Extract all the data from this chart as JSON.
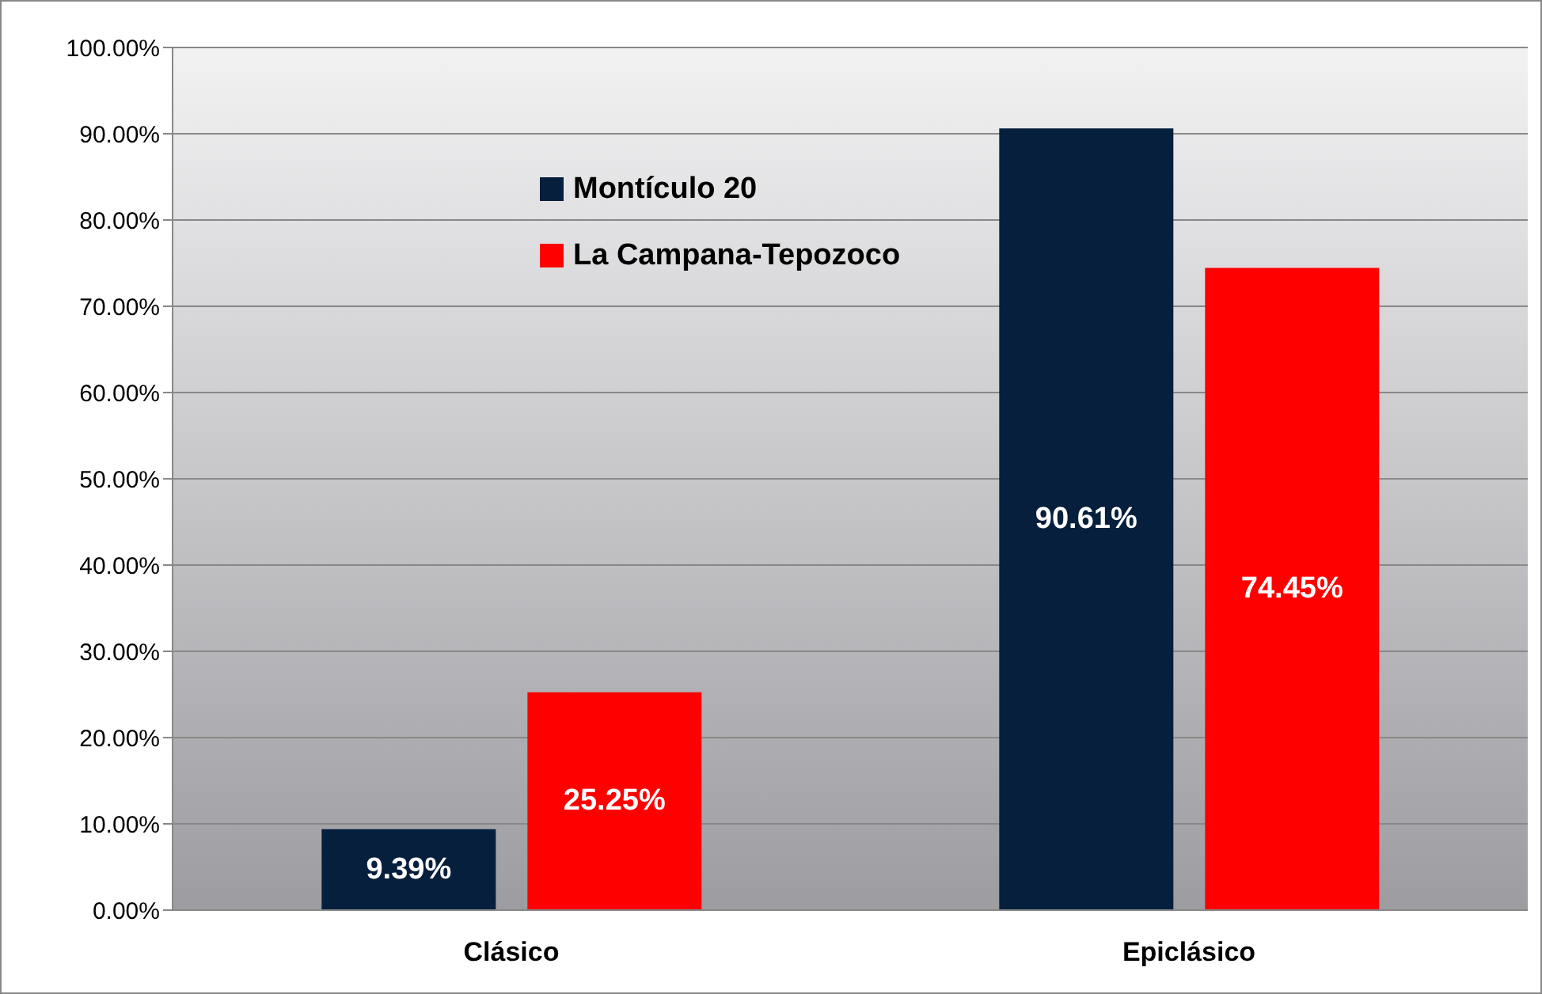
{
  "chart_data": {
    "type": "bar",
    "categories": [
      "Clásico",
      "Epiclásico"
    ],
    "series": [
      {
        "name": "Montículo 20",
        "color": "#061f3c",
        "values": [
          9.39,
          90.61
        ],
        "value_labels": [
          "9.39%",
          "90.61%"
        ]
      },
      {
        "name": "La Campana-Tepozoco",
        "color": "#ff0000",
        "values": [
          25.25,
          74.45
        ],
        "value_labels": [
          "25.25%",
          "74.45%"
        ]
      }
    ],
    "ylim": [
      0,
      100
    ],
    "yticks": [
      {
        "value": 0,
        "label": "0.00%"
      },
      {
        "value": 10,
        "label": "10.00%"
      },
      {
        "value": 20,
        "label": "20.00%"
      },
      {
        "value": 30,
        "label": "30.00%"
      },
      {
        "value": 40,
        "label": "40.00%"
      },
      {
        "value": 50,
        "label": "50.00%"
      },
      {
        "value": 60,
        "label": "60.00%"
      },
      {
        "value": 70,
        "label": "70.00%"
      },
      {
        "value": 80,
        "label": "80.00%"
      },
      {
        "value": 90,
        "label": "90.00%"
      },
      {
        "value": 100,
        "label": "100.00%"
      }
    ],
    "grid": "y",
    "legend": "top left"
  }
}
